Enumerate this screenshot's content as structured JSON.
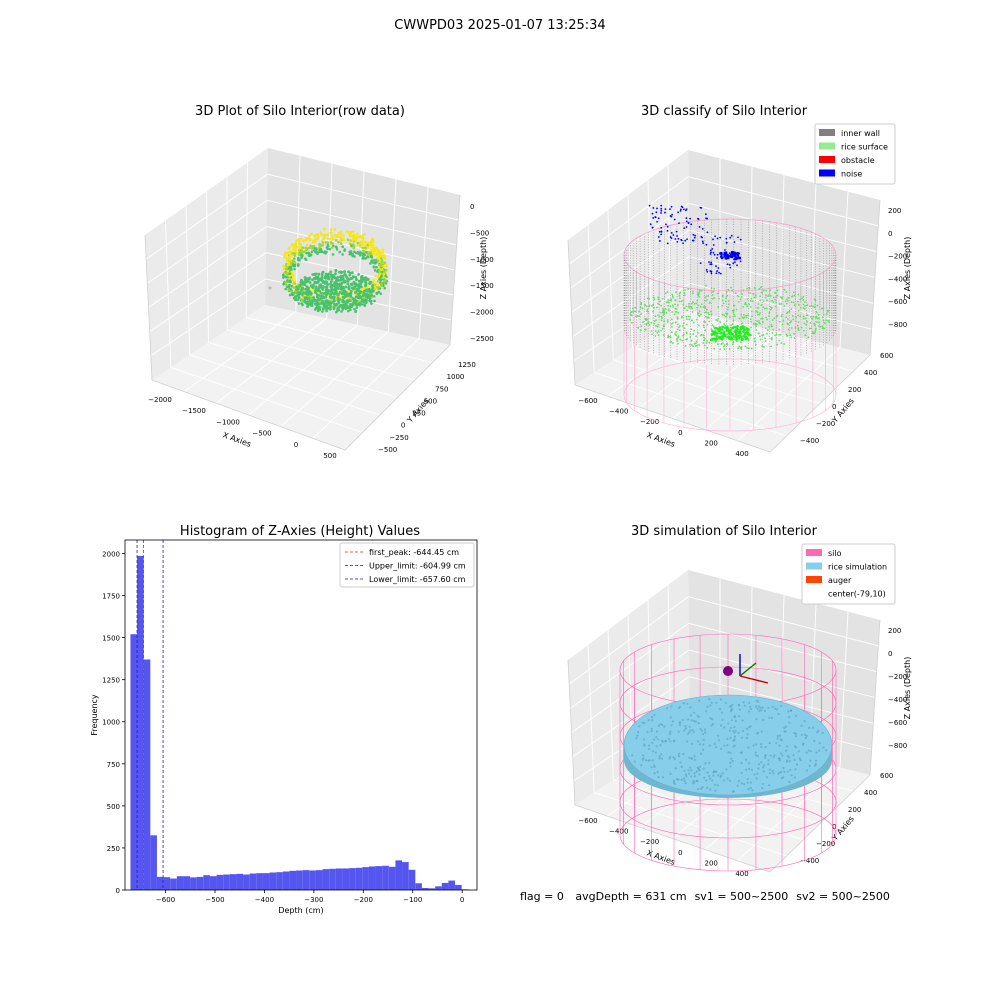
{
  "figure": {
    "suptitle": "CWWPD03 2025-01-07 13:25:34",
    "status": {
      "flag": "flag = 0",
      "avg_depth": "avgDepth = 631 cm",
      "sv1": "sv1 = 500~2500",
      "sv2": "sv2 = 500~2500"
    }
  },
  "chart_data": [
    {
      "type": "scatter",
      "title": "3D Plot of Silo Interior(row data)",
      "xlabel": "X Axies",
      "ylabel": "Y Axies",
      "zlabel": "Z Axies (Depth)",
      "x_ticks": [
        "−2000",
        "−1500",
        "−1000",
        "−500",
        "0",
        "500"
      ],
      "y_ticks": [
        "−500",
        "−250",
        "0",
        "250",
        "500",
        "750",
        "1000",
        "1250"
      ],
      "z_ticks": [
        "0",
        "−500",
        "−1000",
        "−1500",
        "−2000",
        "−2500"
      ],
      "colormap": [
        "#f5e61c",
        "#9fd73a",
        "#49c16d"
      ],
      "description": "point cloud of ring-shaped silo interior colored by depth"
    },
    {
      "type": "scatter",
      "title": "3D classify of Silo Interior",
      "xlabel": "X Axies",
      "ylabel": "Y Axies",
      "zlabel": "Z Axies (Depth)",
      "x_ticks": [
        "−600",
        "−400",
        "−200",
        "0",
        "200",
        "400"
      ],
      "y_ticks": [
        "−400",
        "−200",
        "0",
        "200",
        "400",
        "600"
      ],
      "z_ticks": [
        "200",
        "0",
        "−200",
        "−400",
        "−600",
        "−800"
      ],
      "legend": [
        {
          "label": "inner wall",
          "color": "#808080"
        },
        {
          "label": "rice surface",
          "color": "#90ee90"
        },
        {
          "label": "obstacle",
          "color": "#ff0000"
        },
        {
          "label": "noise",
          "color": "#0000ff"
        }
      ],
      "legend_position": "top-right"
    },
    {
      "type": "bar",
      "title": "Histogram of Z-Axies (Height) Values",
      "xlabel": "Depth (cm)",
      "ylabel": "Frequency",
      "xlim": [
        -682,
        30
      ],
      "ylim": [
        0,
        2080
      ],
      "x_ticks": [
        -600,
        -500,
        -400,
        -300,
        -200,
        -100,
        0
      ],
      "y_ticks": [
        0,
        250,
        500,
        750,
        1000,
        1250,
        1500,
        1750,
        2000
      ],
      "bar_color": "#5555f0",
      "bin_width": 13.4,
      "bin_starts": [
        -671,
        -657.6,
        -644.2,
        -630.8,
        -617.4,
        -604,
        -590.6,
        -577.2,
        -563.8,
        -550.4,
        -537,
        -523.6,
        -510.2,
        -496.8,
        -483.4,
        -470,
        -456.6,
        -443.2,
        -429.8,
        -416.4,
        -403,
        -389.6,
        -376.2,
        -362.8,
        -349.4,
        -336,
        -322.6,
        -309.2,
        -295.8,
        -282.4,
        -269,
        -255.6,
        -242.2,
        -228.8,
        -215.4,
        -202,
        -188.6,
        -175.2,
        -161.8,
        -148.4,
        -135,
        -121.6,
        -108.2,
        -94.8,
        -81.4,
        -68,
        -54.6,
        -41.2,
        -27.8,
        -14.4,
        -1
      ],
      "counts": [
        1520,
        1985,
        1370,
        325,
        78,
        76,
        68,
        82,
        82,
        75,
        78,
        88,
        82,
        90,
        92,
        94,
        96,
        92,
        98,
        100,
        100,
        104,
        106,
        110,
        114,
        116,
        118,
        116,
        118,
        124,
        126,
        128,
        128,
        130,
        132,
        136,
        140,
        142,
        144,
        138,
        176,
        166,
        120,
        40,
        12,
        10,
        22,
        42,
        56,
        30,
        4
      ],
      "vlines": [
        {
          "label": "first_peak: -644.45 cm",
          "x": -644.45,
          "color": "#d62728"
        },
        {
          "label": "Upper_limit: -604.99 cm",
          "x": -604.99,
          "color": "#1f1f9f"
        },
        {
          "label": "Lower_limit: -657.60 cm",
          "x": -657.6,
          "color": "#1f1f9f"
        }
      ],
      "legend_position": "top-right"
    },
    {
      "type": "scatter",
      "title": "3D simulation of Silo Interior",
      "xlabel": "X Axies",
      "ylabel": "Y Axies",
      "zlabel": "Z Axies (Depth)",
      "x_ticks": [
        "−600",
        "−400",
        "−200",
        "0",
        "200",
        "400"
      ],
      "y_ticks": [
        "−400",
        "−200",
        "0",
        "200",
        "400",
        "600"
      ],
      "z_ticks": [
        "200",
        "0",
        "−200",
        "−400",
        "−600",
        "−800"
      ],
      "legend": [
        {
          "label": "silo",
          "color": "#ff69b4"
        },
        {
          "label": "rice simulation",
          "color": "#87ceeb"
        },
        {
          "label": "auger",
          "color": "#ff4500"
        },
        {
          "label": "center(-79,10)",
          "color": "#ffffff"
        }
      ],
      "legend_position": "top-right"
    }
  ]
}
